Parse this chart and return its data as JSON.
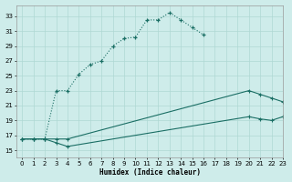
{
  "xlabel": "Humidex (Indice chaleur)",
  "bg_color": "#ceecea",
  "grid_color": "#afd8d4",
  "line_color": "#1a6e64",
  "xmin": -0.5,
  "xmax": 23,
  "ymin": 14,
  "ymax": 34.5,
  "yticks": [
    15,
    17,
    19,
    21,
    23,
    25,
    27,
    29,
    31,
    33
  ],
  "xticks": [
    0,
    1,
    2,
    3,
    4,
    5,
    6,
    7,
    8,
    9,
    10,
    11,
    12,
    13,
    14,
    15,
    16,
    17,
    18,
    19,
    20,
    21,
    22,
    23
  ],
  "line1_x": [
    0,
    1,
    2,
    3,
    4,
    5,
    6,
    7,
    8,
    9,
    10,
    11,
    12,
    13,
    14,
    15,
    16
  ],
  "line1_y": [
    16.5,
    16.5,
    16.5,
    23.0,
    23.0,
    25.2,
    26.5,
    27.0,
    29.0,
    30.0,
    30.2,
    32.5,
    32.5,
    33.5,
    32.5,
    31.5,
    30.5
  ],
  "line2_x": [
    0,
    1,
    2,
    3,
    4,
    20,
    21,
    22,
    23
  ],
  "line2_y": [
    16.5,
    16.5,
    16.5,
    16.5,
    16.5,
    23.0,
    22.5,
    22.0,
    21.5
  ],
  "line3_x": [
    0,
    1,
    2,
    3,
    4,
    20,
    21,
    22,
    23
  ],
  "line3_y": [
    16.5,
    16.5,
    16.5,
    16.0,
    15.5,
    19.5,
    19.2,
    19.0,
    19.5
  ]
}
